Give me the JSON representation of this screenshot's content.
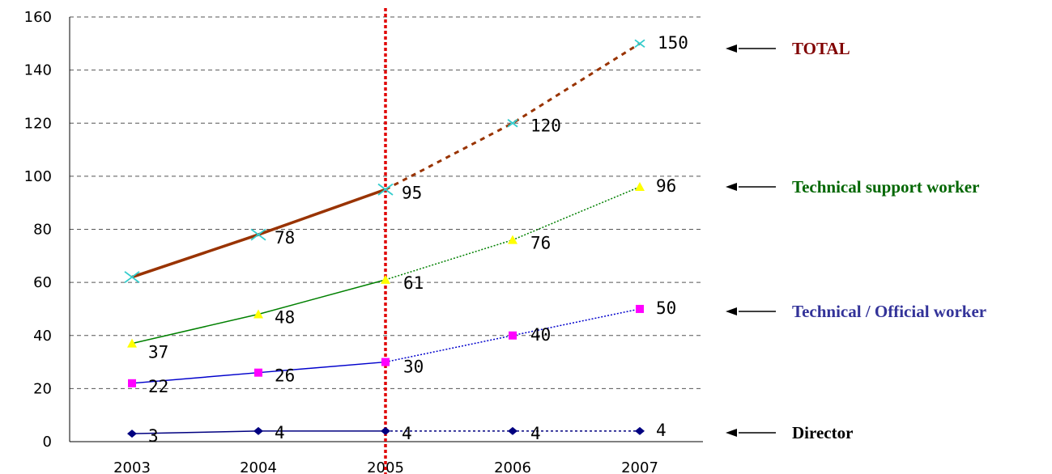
{
  "chart_data": {
    "type": "line",
    "categories": [
      "2003",
      "2004",
      "2005",
      "2006",
      "2007"
    ],
    "ylim": [
      0,
      160
    ],
    "yticks": [
      "0",
      "20",
      "40",
      "60",
      "80",
      "100",
      "120",
      "140",
      "160"
    ],
    "grid": true,
    "divider_category": "2005",
    "series": [
      {
        "name": "TOTAL",
        "key": "total",
        "values": [
          62,
          78,
          95,
          120,
          150
        ],
        "labels": [
          "",
          "78",
          "95",
          "120",
          "150"
        ],
        "line_color": "#993300",
        "marker_color": "#33CCCC",
        "label_color": "#800000",
        "marker": "x"
      },
      {
        "name": "Technical support worker",
        "key": "tech-support",
        "values": [
          37,
          48,
          61,
          76,
          96
        ],
        "labels": [
          "37",
          "48",
          "61",
          "76",
          "96"
        ],
        "line_color": "#008000",
        "marker_color": "#FFFF00",
        "label_color": "#006600",
        "marker": "triangle"
      },
      {
        "name": "Technical / Official worker",
        "key": "tech-official",
        "values": [
          22,
          26,
          30,
          40,
          50
        ],
        "labels": [
          "22",
          "26",
          "30",
          "40",
          "50"
        ],
        "line_color": "#0000CC",
        "marker_color": "#FF00FF",
        "label_color": "#333399",
        "marker": "square"
      },
      {
        "name": "Director",
        "key": "director",
        "values": [
          3,
          4,
          4,
          4,
          4
        ],
        "labels": [
          "3",
          "4",
          "4",
          "4",
          "4"
        ],
        "line_color": "#000080",
        "marker_color": "#000080",
        "label_color": "#000000",
        "marker": "diamond"
      }
    ]
  }
}
